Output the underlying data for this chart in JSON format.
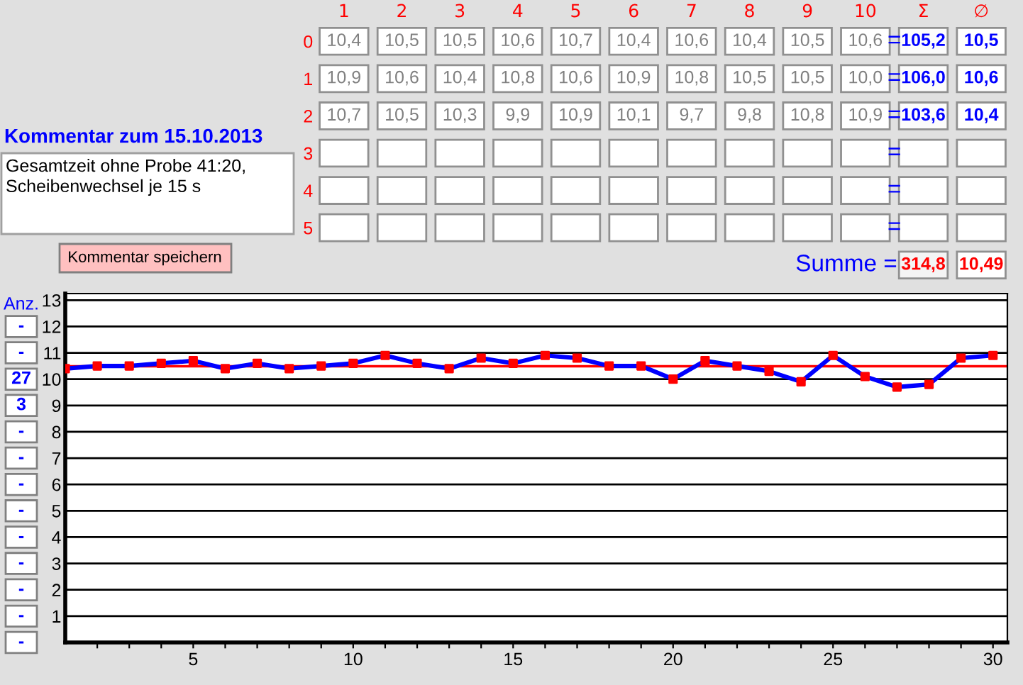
{
  "chart_data": [
    {
      "type": "heatmap",
      "categories": [
        "1",
        "2",
        "3",
        "4",
        "5",
        "6",
        "7",
        "8",
        "9",
        "10",
        "Σ",
        "∅"
      ],
      "y_categories": [
        "0",
        "1",
        "2",
        "3",
        "4",
        "5",
        "Summe ="
      ],
      "cells": [
        [
          10.4,
          10.5,
          10.5,
          10.6,
          10.7,
          10.4,
          10.6,
          10.4,
          10.5,
          10.6,
          105.2,
          10.5
        ],
        [
          10.9,
          10.6,
          10.4,
          10.8,
          10.6,
          10.9,
          10.8,
          10.5,
          10.5,
          10.0,
          106.0,
          10.6
        ],
        [
          10.7,
          10.5,
          10.3,
          9.9,
          10.9,
          10.1,
          9.7,
          9.8,
          10.8,
          10.9,
          103.6,
          10.4
        ],
        [
          null,
          null,
          null,
          null,
          null,
          null,
          null,
          null,
          null,
          null,
          null,
          null
        ],
        [
          null,
          null,
          null,
          null,
          null,
          null,
          null,
          null,
          null,
          null,
          null,
          null
        ],
        [
          null,
          null,
          null,
          null,
          null,
          null,
          null,
          null,
          null,
          null,
          null,
          null
        ],
        [
          null,
          null,
          null,
          null,
          null,
          null,
          null,
          null,
          null,
          null,
          314.8,
          10.49
        ]
      ],
      "cell_labels": [
        [
          "10,4",
          "10,5",
          "10,5",
          "10,6",
          "10,7",
          "10,4",
          "10,6",
          "10,4",
          "10,5",
          "10,6",
          "105,2",
          "10,5"
        ],
        [
          "10,9",
          "10,6",
          "10,4",
          "10,8",
          "10,6",
          "10,9",
          "10,8",
          "10,5",
          "10,5",
          "10,0",
          "106,0",
          "10,6"
        ],
        [
          "10,7",
          "10,5",
          "10,3",
          "9,9",
          "10,9",
          "10,1",
          "9,7",
          "9,8",
          "10,8",
          "10,9",
          "103,6",
          "10,4"
        ],
        [
          null,
          null,
          null,
          null,
          null,
          null,
          null,
          null,
          null,
          null,
          null,
          null
        ],
        [
          null,
          null,
          null,
          null,
          null,
          null,
          null,
          null,
          null,
          null,
          null,
          null
        ],
        [
          null,
          null,
          null,
          null,
          null,
          null,
          null,
          null,
          null,
          null,
          null,
          null
        ],
        [
          null,
          null,
          null,
          null,
          null,
          null,
          null,
          null,
          null,
          null,
          "314,8",
          "10,49"
        ]
      ],
      "annotations": [
        "=",
        "=",
        "=",
        "=",
        "=",
        "="
      ]
    },
    {
      "type": "other",
      "title": "Kommentar zum 15.10.2013",
      "annotations": [
        "Gesamtzeit ohne Probe 41:20,\nScheibenwechsel je 15 s",
        "Kommentar speichern"
      ]
    },
    {
      "type": "line",
      "x": [
        1,
        2,
        3,
        4,
        5,
        6,
        7,
        8,
        9,
        10,
        11,
        12,
        13,
        14,
        15,
        16,
        17,
        18,
        19,
        20,
        21,
        22,
        23,
        24,
        25,
        26,
        27,
        28,
        29,
        30
      ],
      "series": [
        {
          "color": "#0000ff",
          "colors": [
            "#ff0000",
            "#ff0000",
            "#ff0000",
            "#ff0000",
            "#ff0000",
            "#ff0000",
            "#ff0000",
            "#ff0000",
            "#ff0000",
            "#ff0000",
            "#ff0000",
            "#ff0000",
            "#ff0000",
            "#ff0000",
            "#ff0000",
            "#ff0000",
            "#ff0000",
            "#ff0000",
            "#ff0000",
            "#ff0000",
            "#ff0000",
            "#ff0000",
            "#ff0000",
            "#ff0000",
            "#ff0000",
            "#ff0000",
            "#ff0000",
            "#ff0000",
            "#ff0000",
            "#ff0000"
          ],
          "values": [
            10.4,
            10.5,
            10.5,
            10.6,
            10.7,
            10.4,
            10.6,
            10.4,
            10.5,
            10.6,
            10.9,
            10.6,
            10.4,
            10.8,
            10.6,
            10.9,
            10.8,
            10.5,
            10.5,
            10.0,
            10.7,
            10.5,
            10.3,
            9.9,
            10.9,
            10.1,
            9.7,
            9.8,
            10.8,
            10.9
          ]
        }
      ],
      "marker": "square",
      "line_style": "solid",
      "xlim": [
        1,
        30.45
      ],
      "ylim": [
        0,
        13.25
      ],
      "xticks": [
        {
          "value": 2,
          "label": null
        },
        {
          "value": 3,
          "label": null
        },
        {
          "value": 4,
          "label": null
        },
        5,
        {
          "value": 6,
          "label": null
        },
        {
          "value": 7,
          "label": null
        },
        {
          "value": 8,
          "label": null
        },
        {
          "value": 9,
          "label": null
        },
        10,
        {
          "value": 11,
          "label": null
        },
        {
          "value": 12,
          "label": null
        },
        {
          "value": 13,
          "label": null
        },
        {
          "value": 14,
          "label": null
        },
        15,
        {
          "value": 16,
          "label": null
        },
        {
          "value": 17,
          "label": null
        },
        {
          "value": 18,
          "label": null
        },
        {
          "value": 19,
          "label": null
        },
        20,
        {
          "value": 21,
          "label": null
        },
        {
          "value": 22,
          "label": null
        },
        {
          "value": 23,
          "label": null
        },
        {
          "value": 24,
          "label": null
        },
        25,
        {
          "value": 26,
          "label": null
        },
        {
          "value": 27,
          "label": null
        },
        {
          "value": 28,
          "label": null
        },
        {
          "value": 29,
          "label": null
        },
        30
      ],
      "yticks": [
        1,
        2,
        3,
        4,
        5,
        6,
        7,
        8,
        9,
        10,
        11,
        12,
        13
      ],
      "grid": "y",
      "ref_lines": [
        {
          "axis": "y",
          "value": 10.49,
          "color": "#ff0000"
        }
      ],
      "ylabel": "Anz.",
      "annotations": [
        "-",
        "-",
        "27",
        "3",
        "-",
        "-",
        "-",
        "-",
        "-",
        "-",
        "-",
        "-",
        "-"
      ]
    }
  ]
}
